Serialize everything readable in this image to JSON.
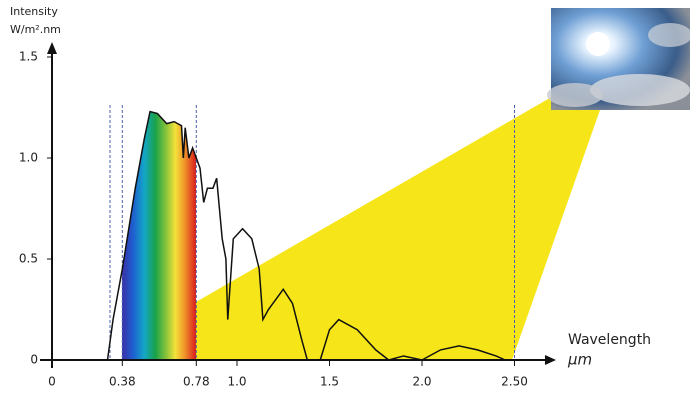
{
  "chart_data": {
    "type": "line",
    "y_label": [
      "Intensity",
      "W/m².nm"
    ],
    "x_label": [
      "Wavelength",
      "µm"
    ],
    "x": [
      0.3,
      0.33,
      0.38,
      0.45,
      0.5,
      0.53,
      0.57,
      0.62,
      0.66,
      0.7,
      0.71,
      0.72,
      0.74,
      0.76,
      0.78,
      0.8,
      0.82,
      0.84,
      0.87,
      0.89,
      0.92,
      0.94,
      0.95,
      0.98,
      1.03,
      1.08,
      1.12,
      1.14,
      1.17,
      1.25,
      1.3,
      1.35,
      1.38,
      1.45,
      1.5,
      1.55,
      1.65,
      1.75,
      1.82,
      1.9,
      2.0,
      2.1,
      2.2,
      2.3,
      2.4,
      2.45
    ],
    "values": [
      0,
      0.2,
      0.45,
      0.85,
      1.1,
      1.23,
      1.22,
      1.17,
      1.18,
      1.16,
      1.0,
      1.15,
      1.0,
      1.05,
      1.0,
      0.95,
      0.78,
      0.85,
      0.85,
      0.9,
      0.6,
      0.5,
      0.2,
      0.6,
      0.65,
      0.6,
      0.45,
      0.2,
      0.25,
      0.35,
      0.28,
      0.1,
      0,
      0,
      0.15,
      0.2,
      0.15,
      0.05,
      0,
      0.02,
      0,
      0.05,
      0.07,
      0.05,
      0.02,
      0
    ],
    "color": "#111111",
    "xlim": [
      0,
      2.7
    ],
    "ylim": [
      0,
      1.5
    ],
    "xticks": [
      0,
      0.38,
      0.78,
      {
        "value": 1,
        "label": "1.0"
      },
      1.5,
      {
        "value": 2,
        "label": "2.0"
      },
      {
        "value": 2.5,
        "label": "2.50"
      }
    ],
    "yticks": [
      0,
      0.5,
      {
        "value": 1,
        "label": "1.0"
      },
      1.5
    ]
  }
}
